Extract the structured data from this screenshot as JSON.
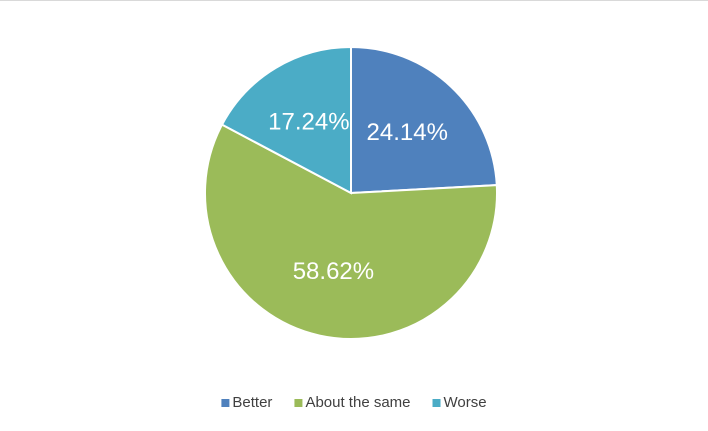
{
  "chart_data": {
    "type": "pie",
    "categories": [
      "Better",
      "About the same",
      "Worse"
    ],
    "values": [
      24.14,
      58.62,
      17.24
    ],
    "value_labels": [
      "24.14%",
      "58.62%",
      "17.24%"
    ],
    "colors": [
      "#4f81bd",
      "#9bbb59",
      "#4bacc6"
    ],
    "legend": "bottom"
  }
}
